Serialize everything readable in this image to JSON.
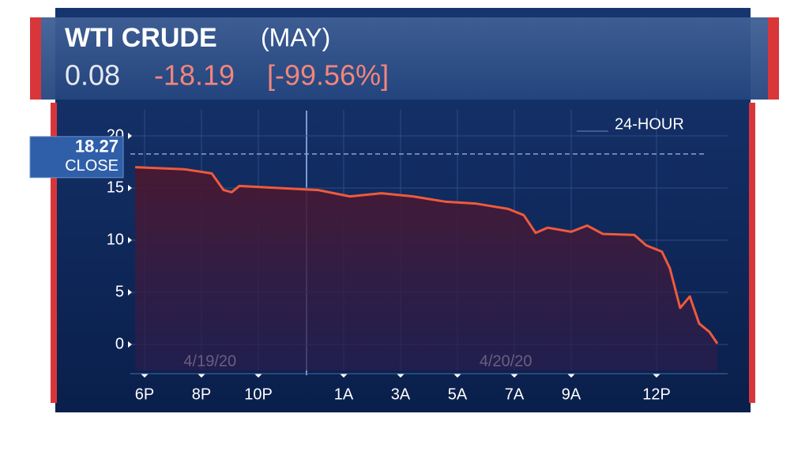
{
  "header": {
    "title": "WTI CRUDE",
    "contract": "(MAY)",
    "price": "0.08",
    "change": "-18.19",
    "change_pct": "[-99.56%]"
  },
  "chart_data": {
    "type": "area",
    "period_label": "24-HOUR",
    "close_value": 18.27,
    "close_label": "CLOSE",
    "annotations": [
      {
        "text": "4/19/20",
        "x": 2.3
      },
      {
        "text": "4/20/20",
        "x": 12.7
      }
    ],
    "x": [
      -0.33,
      1.39,
      2.36,
      2.78,
      3.06,
      3.33,
      4.72,
      6.11,
      7.22,
      8.33,
      9.44,
      10.56,
      11.67,
      12.78,
      13.33,
      13.75,
      14.17,
      15.0,
      15.56,
      16.11,
      17.22,
      17.64,
      18.19,
      18.47,
      18.83,
      19.17,
      19.5,
      19.86,
      20.14
    ],
    "series": [
      {
        "color": "#ef5a3c",
        "values": [
          17.0,
          16.8,
          16.4,
          14.8,
          14.6,
          15.2,
          15.0,
          14.8,
          14.2,
          14.5,
          14.2,
          13.7,
          13.5,
          13.0,
          12.4,
          10.7,
          11.2,
          10.8,
          11.4,
          10.6,
          10.5,
          9.5,
          8.9,
          7.3,
          3.5,
          4.6,
          2.0,
          1.2,
          0.08
        ]
      }
    ],
    "xlim": [
      -0.5,
      20.5
    ],
    "ylim": [
      -2.5,
      22.5
    ],
    "yticks": [
      0,
      5,
      10,
      15,
      20
    ],
    "xticks": [
      {
        "value": 0,
        "label": "6P"
      },
      {
        "value": 2,
        "label": "8P"
      },
      {
        "value": 4,
        "label": "10P"
      },
      {
        "value": 7,
        "label": "1A"
      },
      {
        "value": 9,
        "label": "3A"
      },
      {
        "value": 11,
        "label": "5A"
      },
      {
        "value": 13,
        "label": "7A"
      },
      {
        "value": 15,
        "label": "9A"
      },
      {
        "value": 18,
        "label": "12P"
      }
    ],
    "grid": true
  }
}
